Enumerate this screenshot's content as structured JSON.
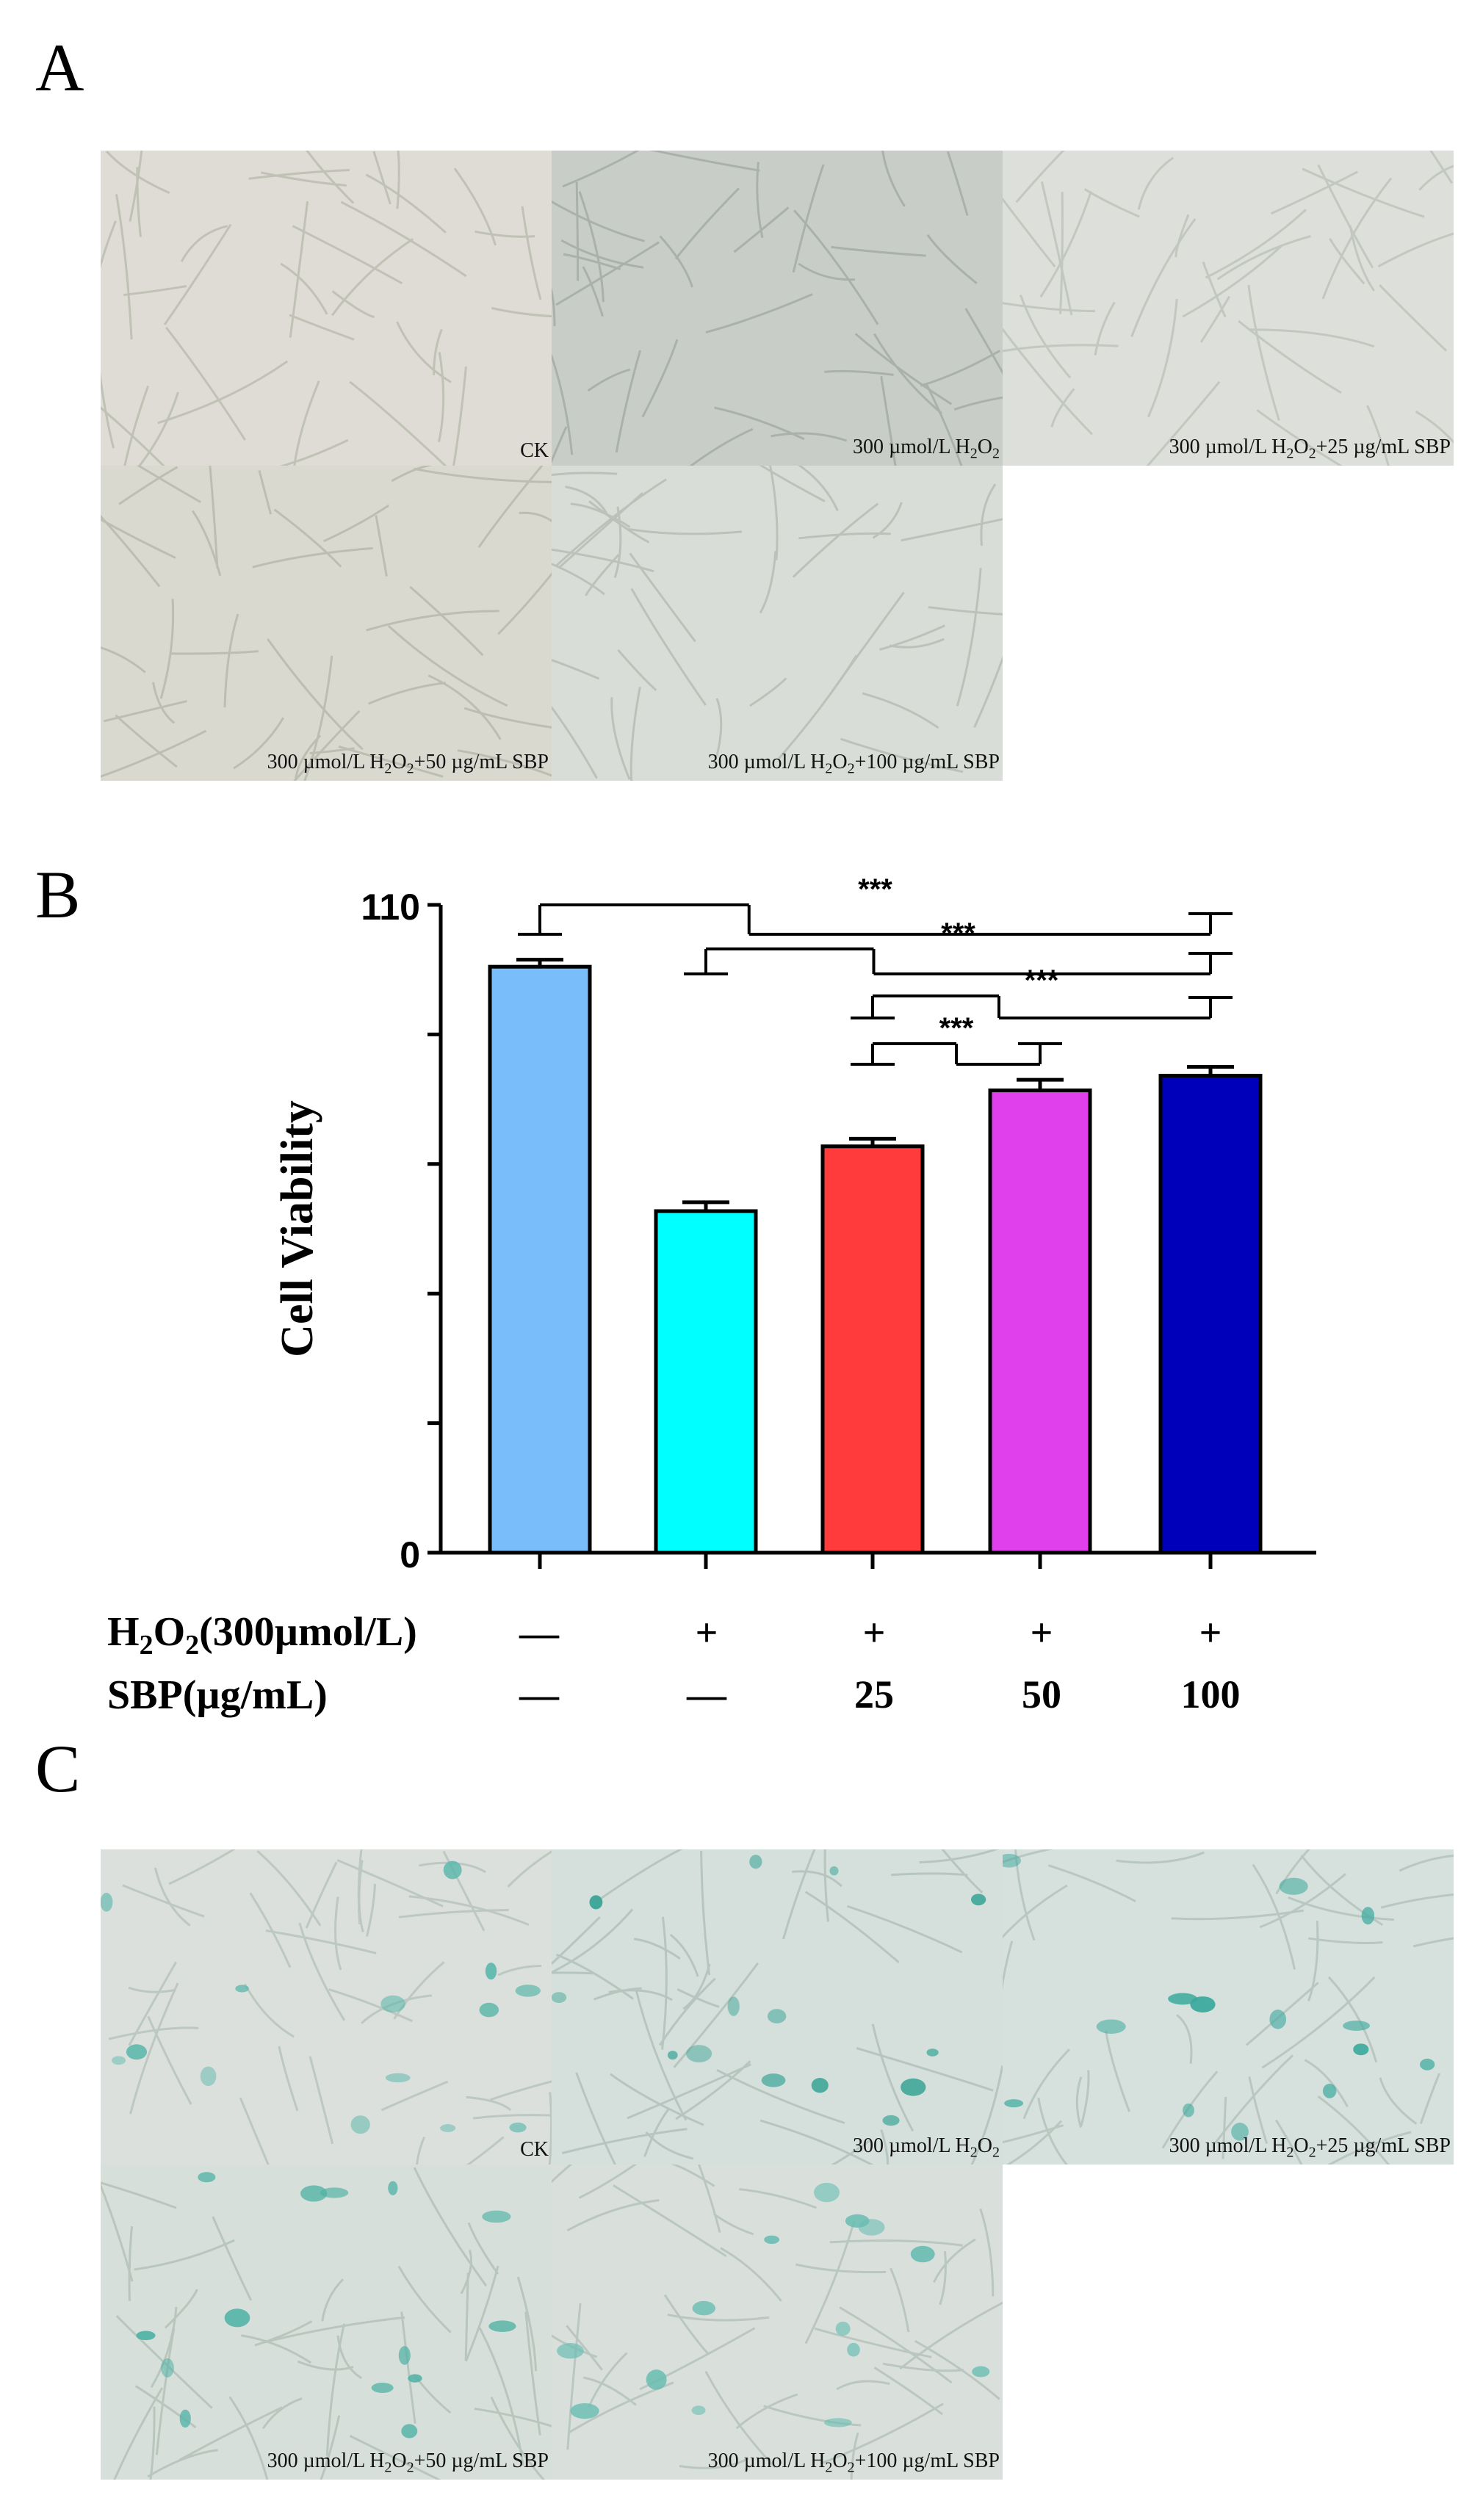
{
  "panels": {
    "a": {
      "label": "A"
    },
    "b": {
      "label": "B"
    },
    "c": {
      "label": "C"
    }
  },
  "micrographs": {
    "tile_1": {
      "prefix": "CK",
      "sub": "",
      "suffix": ""
    },
    "tile_2": {
      "prefix": "300 µmol/L H",
      "sub": "2",
      "mid": "O",
      "sub2": "2",
      "suffix": ""
    },
    "tile_3": {
      "prefix": "300 µmol/L H",
      "sub": "2",
      "mid": "O",
      "sub2": "2",
      "suffix": "+25 µg/mL SBP"
    },
    "tile_4": {
      "prefix": "300 µmol/L H",
      "sub": "2",
      "mid": "O",
      "sub2": "2",
      "suffix": "+50 µg/mL SBP"
    },
    "tile_5": {
      "prefix": "300 µmol/L H",
      "sub": "2",
      "mid": "O",
      "sub2": "2",
      "suffix": "+100 µg/mL SBP"
    }
  },
  "colors": {
    "bar_ck": "#79bdfa",
    "bar_h2o2": "#00ffff",
    "bar_25": "#ff3b3b",
    "bar_50": "#e040ec",
    "bar_100": "#0000bb",
    "brightfield_bg": "#d8ddd6",
    "stain_bg": "#d6e0dc",
    "stain": "#3aa99c"
  },
  "chart_data": {
    "type": "bar",
    "ylabel": "Cell Viability",
    "ylim": [
      0,
      110
    ],
    "yticks": [
      "0",
      "110"
    ],
    "categories": [
      "CK",
      "H2O2",
      "H2O2+25",
      "H2O2+50",
      "H2O2+100"
    ],
    "values": [
      99.5,
      58,
      69,
      78.5,
      81
    ],
    "errors": [
      1.2,
      1.5,
      1.3,
      1.8,
      1.5
    ],
    "significance": [
      {
        "from": 0,
        "to": [
          1,
          2,
          3,
          4
        ],
        "label": "***"
      },
      {
        "from": 1,
        "to": [
          2,
          3,
          4
        ],
        "label": "***"
      },
      {
        "from": 2,
        "to": [
          3,
          4
        ],
        "label": "***"
      },
      {
        "from": 2,
        "to": [
          3
        ],
        "label": "***"
      }
    ],
    "treatment_table": {
      "row1_label": {
        "a": "H",
        "s1": "2",
        "b": "O",
        "s2": "2",
        "c": "(300µmol/L)"
      },
      "row2_label": "SBP(µg/mL)",
      "row1": [
        "—",
        "+",
        "+",
        "+",
        "+"
      ],
      "row2": [
        "—",
        "—",
        "25",
        "50",
        "100"
      ]
    }
  }
}
